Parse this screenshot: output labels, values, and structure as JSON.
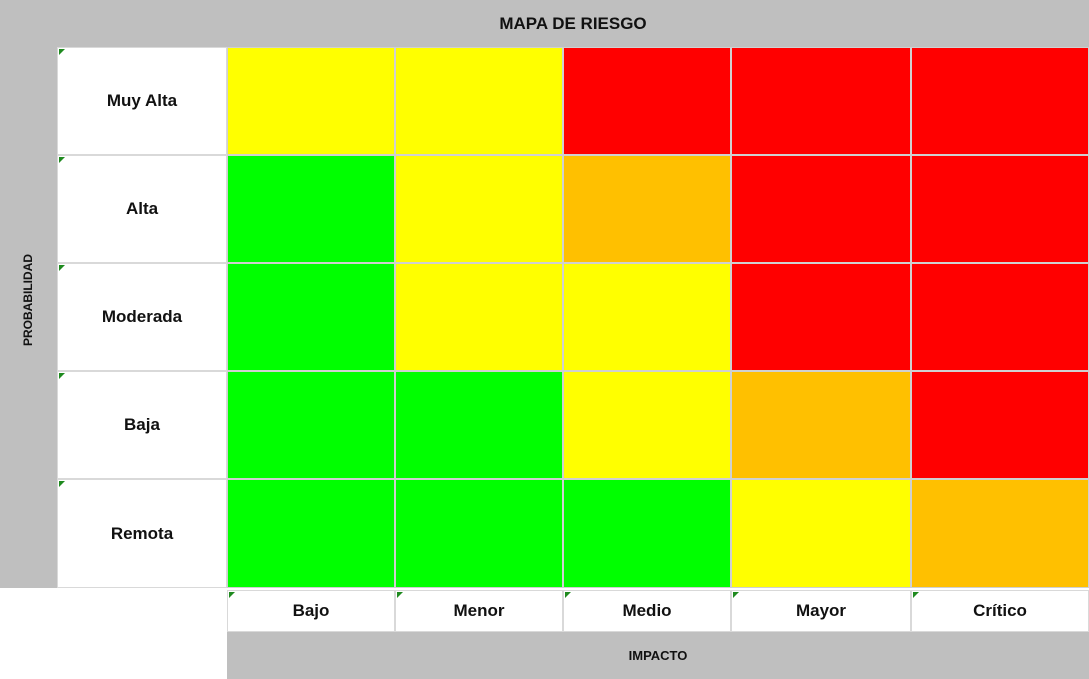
{
  "title": "MAPA DE RIESGO",
  "y_axis_label": "PROBABILIDAD",
  "x_axis_label": "IMPACTO",
  "rows": [
    "Muy Alta",
    "Alta",
    "Moderada",
    "Baja",
    "Remota"
  ],
  "columns": [
    "Bajo",
    "Menor",
    "Medio",
    "Mayor",
    "Crítico"
  ],
  "cell_colors": [
    [
      "#ffff00",
      "#ffff00",
      "#ff0000",
      "#ff0000",
      "#ff0000"
    ],
    [
      "#00ff00",
      "#ffff00",
      "#ffc000",
      "#ff0000",
      "#ff0000"
    ],
    [
      "#00ff00",
      "#ffff00",
      "#ffff00",
      "#ff0000",
      "#ff0000"
    ],
    [
      "#00ff00",
      "#00ff00",
      "#ffff00",
      "#ffc000",
      "#ff0000"
    ],
    [
      "#00ff00",
      "#00ff00",
      "#00ff00",
      "#ffff00",
      "#ffc000"
    ]
  ]
}
